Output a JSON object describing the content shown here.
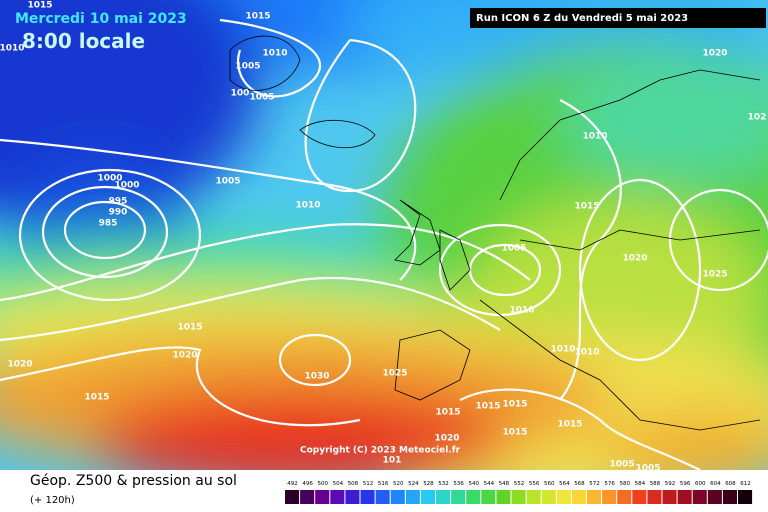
{
  "header": {
    "date": "Mercredi 10 mai 2023",
    "time": "8:00 locale",
    "run": "Run ICON 6 Z du Vendredi 5 mai 2023"
  },
  "copyright": "Copyright (C) 2023 Meteociel.fr",
  "isobar_labels": [
    "1015",
    "1015",
    "1010",
    "1010",
    "1005",
    "100",
    "1005",
    "1020",
    "102",
    "1010",
    "1000",
    "1000",
    "1005",
    "995",
    "990",
    "985",
    "1010",
    "1015",
    "1005",
    "1020",
    "1025",
    "1010",
    "1015",
    "1020",
    "1010",
    "1010",
    "1020",
    "1030",
    "1025",
    "1015",
    "1015",
    "1015",
    "1015",
    "1015",
    "1015",
    "1020",
    "101",
    "1005",
    "1005"
  ],
  "footer": {
    "title": "Géop. Z500 & pression au sol",
    "lead": "(+ 120h)"
  },
  "scale": {
    "labels": [
      "492",
      "496",
      "500",
      "504",
      "508",
      "512",
      "516",
      "520",
      "524",
      "528",
      "532",
      "536",
      "540",
      "544",
      "548",
      "552",
      "556",
      "560",
      "564",
      "568",
      "572",
      "576",
      "580",
      "584",
      "588",
      "592",
      "596",
      "600",
      "604",
      "608",
      "612"
    ]
  }
}
